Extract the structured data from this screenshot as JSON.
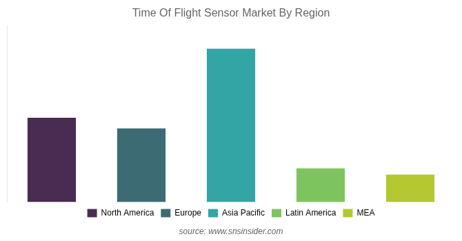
{
  "chart_data": {
    "type": "bar",
    "title": "Time Of Flight Sensor Market By Region",
    "categories": [
      "North America",
      "Europe",
      "Asia Pacific",
      "Latin America",
      "MEA"
    ],
    "values": [
      55,
      48,
      100,
      22,
      18
    ],
    "colors": [
      "#4a2c52",
      "#3d6b73",
      "#33a5a5",
      "#7ec45e",
      "#b5c832"
    ],
    "ylim": [
      0,
      115
    ],
    "grid": false,
    "tick_labels": false,
    "legend": "bottom",
    "annotations": [
      "source: www.snsinsider.com"
    ]
  }
}
